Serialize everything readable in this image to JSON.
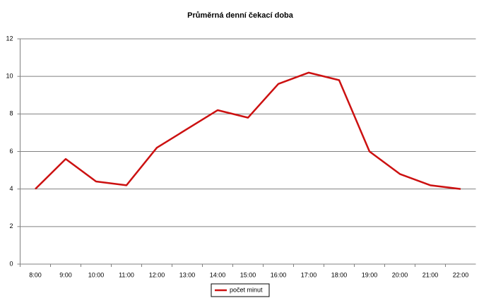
{
  "chart_data": {
    "type": "line",
    "title": "Průměrná denní čekací doba",
    "categories": [
      "8:00",
      "9:00",
      "10:00",
      "11:00",
      "12:00",
      "13:00",
      "14:00",
      "15:00",
      "16:00",
      "17:00",
      "18:00",
      "19:00",
      "20:00",
      "21:00",
      "22:00"
    ],
    "series": [
      {
        "name": "počet minut",
        "color": "#cc1111",
        "values": [
          4,
          5.6,
          4.4,
          4.2,
          6.2,
          7.2,
          8.2,
          7.8,
          9.6,
          10.2,
          9.8,
          6,
          4.8,
          4.2,
          4
        ]
      }
    ],
    "ylim": [
      0,
      12
    ],
    "yticks": [
      0,
      2,
      4,
      6,
      8,
      10,
      12
    ],
    "grid": true,
    "legend": "bottom"
  }
}
